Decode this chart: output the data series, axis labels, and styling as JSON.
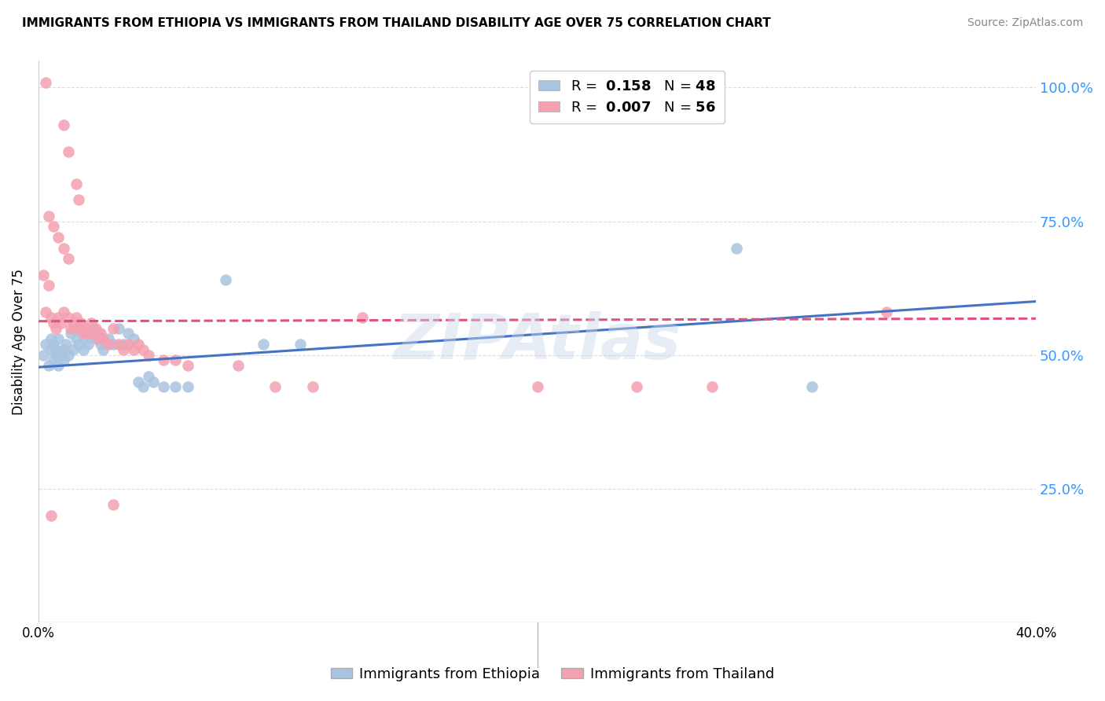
{
  "title": "IMMIGRANTS FROM ETHIOPIA VS IMMIGRANTS FROM THAILAND DISABILITY AGE OVER 75 CORRELATION CHART",
  "source": "Source: ZipAtlas.com",
  "ylabel": "Disability Age Over 75",
  "watermark": "ZIPAtlas",
  "xlim": [
    0.0,
    0.4
  ],
  "ylim": [
    0.0,
    1.05
  ],
  "yticks": [
    0.0,
    0.25,
    0.5,
    0.75,
    1.0
  ],
  "xticks": [
    0.0,
    0.1,
    0.2,
    0.3,
    0.4
  ],
  "xtick_labels": [
    "0.0%",
    "",
    "",
    "",
    "40.0%"
  ],
  "ethiopia_color": "#a8c4e0",
  "thailand_color": "#f4a0b0",
  "ethiopia_line_color": "#4472c4",
  "thailand_line_color": "#e05080",
  "ethiopia_R": 0.158,
  "ethiopia_N": 48,
  "thailand_R": 0.007,
  "thailand_N": 56,
  "ethiopia_scatter": [
    [
      0.002,
      0.5
    ],
    [
      0.003,
      0.52
    ],
    [
      0.004,
      0.48
    ],
    [
      0.005,
      0.51
    ],
    [
      0.005,
      0.53
    ],
    [
      0.006,
      0.49
    ],
    [
      0.006,
      0.52
    ],
    [
      0.007,
      0.5
    ],
    [
      0.007,
      0.51
    ],
    [
      0.008,
      0.48
    ],
    [
      0.008,
      0.53
    ],
    [
      0.009,
      0.5
    ],
    [
      0.01,
      0.51
    ],
    [
      0.01,
      0.49
    ],
    [
      0.011,
      0.52
    ],
    [
      0.012,
      0.5
    ],
    [
      0.013,
      0.54
    ],
    [
      0.014,
      0.51
    ],
    [
      0.015,
      0.53
    ],
    [
      0.016,
      0.52
    ],
    [
      0.017,
      0.55
    ],
    [
      0.018,
      0.51
    ],
    [
      0.019,
      0.53
    ],
    [
      0.02,
      0.52
    ],
    [
      0.021,
      0.54
    ],
    [
      0.022,
      0.55
    ],
    [
      0.023,
      0.53
    ],
    [
      0.024,
      0.54
    ],
    [
      0.025,
      0.52
    ],
    [
      0.026,
      0.51
    ],
    [
      0.028,
      0.53
    ],
    [
      0.03,
      0.52
    ],
    [
      0.032,
      0.55
    ],
    [
      0.034,
      0.52
    ],
    [
      0.036,
      0.54
    ],
    [
      0.038,
      0.53
    ],
    [
      0.04,
      0.45
    ],
    [
      0.042,
      0.44
    ],
    [
      0.044,
      0.46
    ],
    [
      0.046,
      0.45
    ],
    [
      0.05,
      0.44
    ],
    [
      0.055,
      0.44
    ],
    [
      0.06,
      0.44
    ],
    [
      0.075,
      0.64
    ],
    [
      0.09,
      0.52
    ],
    [
      0.105,
      0.52
    ],
    [
      0.28,
      0.7
    ],
    [
      0.31,
      0.44
    ]
  ],
  "thailand_scatter": [
    [
      0.003,
      1.01
    ],
    [
      0.01,
      0.93
    ],
    [
      0.012,
      0.88
    ],
    [
      0.015,
      0.82
    ],
    [
      0.016,
      0.79
    ],
    [
      0.004,
      0.76
    ],
    [
      0.006,
      0.74
    ],
    [
      0.008,
      0.72
    ],
    [
      0.01,
      0.7
    ],
    [
      0.012,
      0.68
    ],
    [
      0.002,
      0.65
    ],
    [
      0.004,
      0.63
    ],
    [
      0.003,
      0.58
    ],
    [
      0.005,
      0.57
    ],
    [
      0.006,
      0.56
    ],
    [
      0.007,
      0.55
    ],
    [
      0.008,
      0.57
    ],
    [
      0.009,
      0.56
    ],
    [
      0.01,
      0.58
    ],
    [
      0.012,
      0.57
    ],
    [
      0.013,
      0.55
    ],
    [
      0.014,
      0.56
    ],
    [
      0.015,
      0.57
    ],
    [
      0.016,
      0.55
    ],
    [
      0.017,
      0.56
    ],
    [
      0.018,
      0.54
    ],
    [
      0.019,
      0.55
    ],
    [
      0.02,
      0.54
    ],
    [
      0.021,
      0.56
    ],
    [
      0.022,
      0.54
    ],
    [
      0.023,
      0.55
    ],
    [
      0.024,
      0.53
    ],
    [
      0.025,
      0.54
    ],
    [
      0.026,
      0.53
    ],
    [
      0.028,
      0.52
    ],
    [
      0.03,
      0.55
    ],
    [
      0.032,
      0.52
    ],
    [
      0.034,
      0.51
    ],
    [
      0.036,
      0.52
    ],
    [
      0.038,
      0.51
    ],
    [
      0.04,
      0.52
    ],
    [
      0.042,
      0.51
    ],
    [
      0.044,
      0.5
    ],
    [
      0.05,
      0.49
    ],
    [
      0.055,
      0.49
    ],
    [
      0.06,
      0.48
    ],
    [
      0.08,
      0.48
    ],
    [
      0.095,
      0.44
    ],
    [
      0.11,
      0.44
    ],
    [
      0.13,
      0.57
    ],
    [
      0.005,
      0.2
    ],
    [
      0.03,
      0.22
    ],
    [
      0.2,
      0.44
    ],
    [
      0.24,
      0.44
    ],
    [
      0.27,
      0.44
    ],
    [
      0.34,
      0.58
    ]
  ],
  "eth_line_x": [
    0.0,
    0.4
  ],
  "eth_line_y": [
    0.477,
    0.6
  ],
  "thai_line_x": [
    0.0,
    0.4
  ],
  "thai_line_y": [
    0.563,
    0.568
  ],
  "background_color": "#ffffff",
  "grid_color": "#dddddd"
}
